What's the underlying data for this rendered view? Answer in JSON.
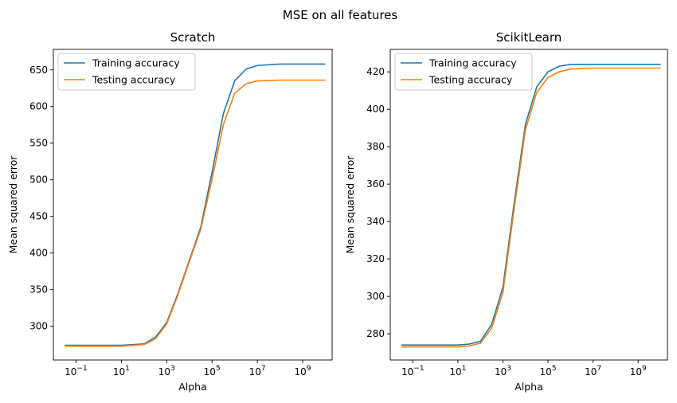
{
  "suptitle": "MSE on all features",
  "chart_data": [
    {
      "type": "line",
      "title": "Scratch",
      "xlabel": "Alpha",
      "ylabel": "Mean squared error",
      "xscale": "log",
      "xlim_log10": [
        -2.0,
        10.3
      ],
      "ylim": [
        254,
        678
      ],
      "xticks": [
        "10^-1",
        "10^1",
        "10^3",
        "10^5",
        "10^7",
        "10^9"
      ],
      "yticks": [
        300,
        350,
        400,
        450,
        500,
        550,
        600,
        650
      ],
      "legend": "top-left",
      "grid": false,
      "series": [
        {
          "name": "Training accuracy",
          "color": "#1f77b4",
          "points": [
            [
              -1.5,
              274
            ],
            [
              0,
              274
            ],
            [
              1,
              274
            ],
            [
              2,
              276
            ],
            [
              2.5,
              285
            ],
            [
              3,
              305
            ],
            [
              3.5,
              345
            ],
            [
              4,
              390
            ],
            [
              4.5,
              435
            ],
            [
              5,
              510
            ],
            [
              5.5,
              590
            ],
            [
              6,
              635
            ],
            [
              6.5,
              651
            ],
            [
              7,
              656
            ],
            [
              8,
              658
            ],
            [
              10,
              658
            ]
          ]
        },
        {
          "name": "Testing accuracy",
          "color": "#ff7f0e",
          "points": [
            [
              -1.5,
              273
            ],
            [
              0,
              273
            ],
            [
              1,
              273
            ],
            [
              2,
              275
            ],
            [
              2.5,
              283
            ],
            [
              3,
              303
            ],
            [
              3.5,
              343
            ],
            [
              4,
              388
            ],
            [
              4.5,
              432
            ],
            [
              5,
              500
            ],
            [
              5.5,
              575
            ],
            [
              6,
              618
            ],
            [
              6.5,
              631
            ],
            [
              7,
              635
            ],
            [
              8,
              636
            ],
            [
              10,
              636
            ]
          ]
        }
      ]
    },
    {
      "type": "line",
      "title": "ScikitLearn",
      "xlabel": "Alpha",
      "ylabel": "Mean squared error",
      "xscale": "log",
      "xlim_log10": [
        -2.0,
        10.3
      ],
      "ylim": [
        266,
        432
      ],
      "xticks": [
        "10^-1",
        "10^1",
        "10^3",
        "10^5",
        "10^7",
        "10^9"
      ],
      "yticks": [
        280,
        300,
        320,
        340,
        360,
        380,
        400,
        420
      ],
      "legend": "top-left",
      "grid": false,
      "series": [
        {
          "name": "Training accuracy",
          "color": "#1f77b4",
          "points": [
            [
              -1.5,
              274
            ],
            [
              0,
              274
            ],
            [
              1,
              274
            ],
            [
              1.5,
              274.5
            ],
            [
              2,
              276
            ],
            [
              2.5,
              285
            ],
            [
              3,
              305
            ],
            [
              3.5,
              350
            ],
            [
              4,
              392
            ],
            [
              4.5,
              412
            ],
            [
              5,
              420
            ],
            [
              5.5,
              423
            ],
            [
              6,
              424
            ],
            [
              7,
              424
            ],
            [
              10,
              424
            ]
          ]
        },
        {
          "name": "Testing accuracy",
          "color": "#ff7f0e",
          "points": [
            [
              -1.5,
              273
            ],
            [
              0,
              273
            ],
            [
              1,
              273
            ],
            [
              1.5,
              273.5
            ],
            [
              2,
              275
            ],
            [
              2.5,
              283
            ],
            [
              3,
              302
            ],
            [
              3.5,
              347
            ],
            [
              4,
              389
            ],
            [
              4.5,
              409
            ],
            [
              5,
              417
            ],
            [
              5.5,
              420
            ],
            [
              6,
              421.5
            ],
            [
              7,
              422
            ],
            [
              10,
              422
            ]
          ]
        }
      ]
    }
  ]
}
